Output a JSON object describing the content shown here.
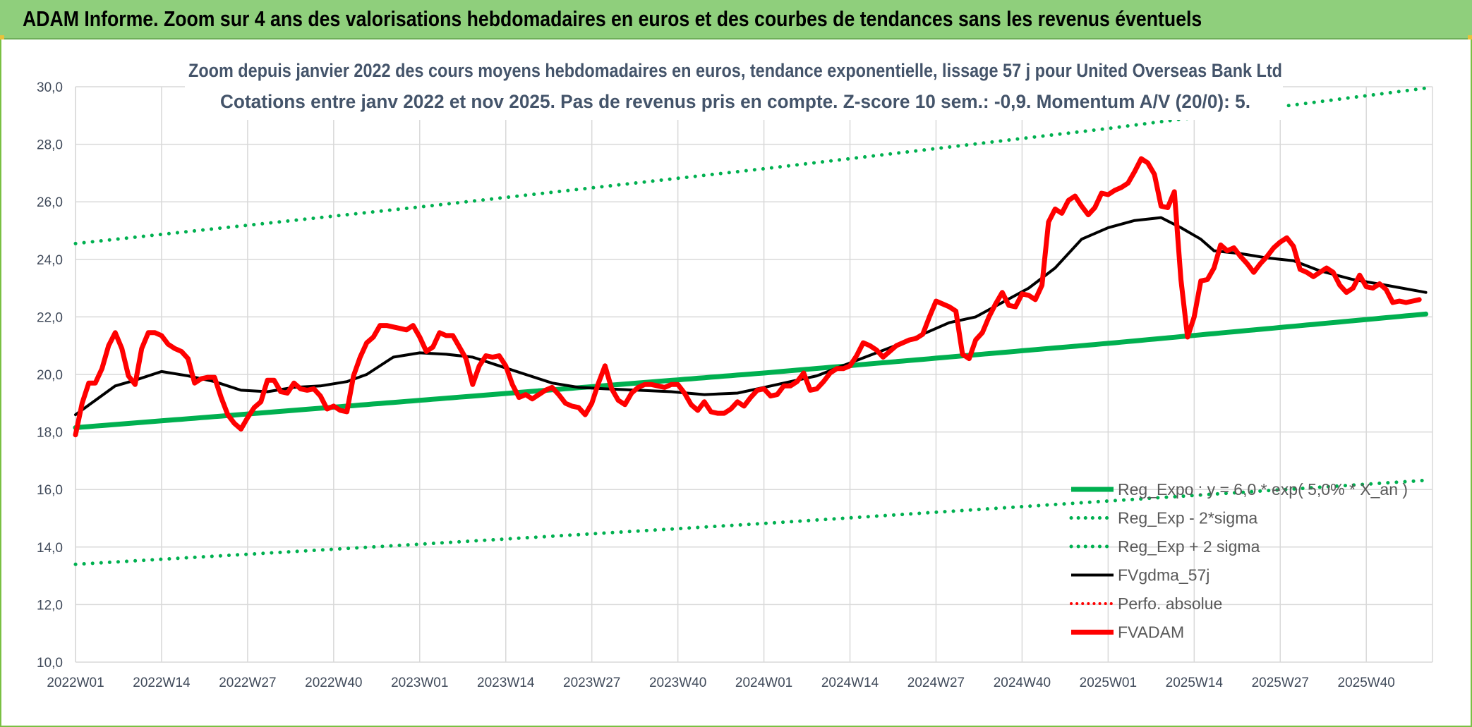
{
  "banner": {
    "title": "ADAM Informe. Zoom sur 4 ans des valorisations hebdomadaires en euros et des courbes de tendances sans les revenus éventuels"
  },
  "chart_data": {
    "type": "line",
    "title_line1": "Zoom depuis janvier 2022 des cours moyens hebdomadaires en euros, tendance exponentielle, lissage 57 j pour United Overseas Bank Ltd",
    "title_line2": "Cotations entre janv 2022 et nov 2025. Pas de revenus pris en compte. Z-score 10 sem.: -0,9. Momentum A/V (20/0): 5.",
    "xlabel": "",
    "ylabel": "",
    "ylim": [
      10,
      30
    ],
    "yticks": [
      "10,0",
      "12,0",
      "14,0",
      "16,0",
      "18,0",
      "20,0",
      "22,0",
      "24,0",
      "26,0",
      "28,0",
      "30,0"
    ],
    "x_tick_labels": [
      "2022W01",
      "2022W14",
      "2022W27",
      "2022W40",
      "2023W01",
      "2023W14",
      "2023W27",
      "2023W40",
      "2024W01",
      "2024W14",
      "2024W27",
      "2024W40",
      "2025W01",
      "2025W14",
      "2025W27",
      "2025W40"
    ],
    "x_tick_index": [
      0,
      13,
      26,
      39,
      52,
      65,
      78,
      91,
      104,
      117,
      130,
      143,
      156,
      169,
      182,
      195
    ],
    "n_weeks": 205,
    "grid": true,
    "legend_position": "bottom-right",
    "series": [
      {
        "name": "Reg_Expo : y = 6,0 * exp( 5,0% * X_an )",
        "style": "solid",
        "color": "#00b050",
        "width": 7,
        "knots": [
          [
            0,
            18.15
          ],
          [
            52,
            19.1
          ],
          [
            104,
            20.05
          ],
          [
            156,
            21.08
          ],
          [
            204,
            22.1
          ]
        ]
      },
      {
        "name": "Reg_Exp - 2*sigma",
        "style": "dotted",
        "color": "#00b050",
        "width": 5,
        "knots": [
          [
            0,
            13.4
          ],
          [
            52,
            14.1
          ],
          [
            104,
            14.82
          ],
          [
            156,
            15.6
          ],
          [
            204,
            16.32
          ]
        ]
      },
      {
        "name": "Reg_Exp + 2 sigma",
        "style": "dotted",
        "color": "#00b050",
        "width": 5,
        "knots": [
          [
            0,
            24.55
          ],
          [
            52,
            25.82
          ],
          [
            104,
            27.15
          ],
          [
            156,
            28.55
          ],
          [
            204,
            29.95
          ]
        ]
      },
      {
        "name": "FVgdma_57j",
        "style": "solid",
        "color": "#000000",
        "width": 4,
        "knots": [
          [
            0,
            18.6
          ],
          [
            3,
            19.1
          ],
          [
            6,
            19.6
          ],
          [
            9,
            19.8
          ],
          [
            13,
            20.1
          ],
          [
            17,
            19.95
          ],
          [
            21,
            19.75
          ],
          [
            25,
            19.45
          ],
          [
            29,
            19.4
          ],
          [
            33,
            19.55
          ],
          [
            37,
            19.6
          ],
          [
            41,
            19.75
          ],
          [
            44,
            20.0
          ],
          [
            48,
            20.6
          ],
          [
            52,
            20.75
          ],
          [
            56,
            20.7
          ],
          [
            60,
            20.6
          ],
          [
            64,
            20.3
          ],
          [
            68,
            20.0
          ],
          [
            72,
            19.7
          ],
          [
            76,
            19.55
          ],
          [
            80,
            19.5
          ],
          [
            85,
            19.45
          ],
          [
            90,
            19.4
          ],
          [
            95,
            19.3
          ],
          [
            100,
            19.35
          ],
          [
            104,
            19.55
          ],
          [
            108,
            19.75
          ],
          [
            112,
            19.95
          ],
          [
            117,
            20.4
          ],
          [
            121,
            20.75
          ],
          [
            125,
            21.1
          ],
          [
            129,
            21.5
          ],
          [
            132,
            21.8
          ],
          [
            136,
            22.0
          ],
          [
            140,
            22.5
          ],
          [
            144,
            23.0
          ],
          [
            148,
            23.7
          ],
          [
            152,
            24.7
          ],
          [
            156,
            25.1
          ],
          [
            160,
            25.35
          ],
          [
            164,
            25.45
          ],
          [
            167,
            25.1
          ],
          [
            170,
            24.7
          ],
          [
            172,
            24.3
          ],
          [
            176,
            24.2
          ],
          [
            180,
            24.05
          ],
          [
            184,
            23.95
          ],
          [
            188,
            23.6
          ],
          [
            193,
            23.3
          ],
          [
            198,
            23.1
          ],
          [
            204,
            22.85
          ]
        ]
      },
      {
        "name": "Perfo. absolue",
        "style": "dotted",
        "color": "#ff0000",
        "width": 4,
        "knots": []
      },
      {
        "name": "FVADAM",
        "style": "solid",
        "color": "#ff0000",
        "width": 7,
        "knots": [
          [
            0,
            17.9
          ],
          [
            1,
            19.0
          ],
          [
            2,
            19.7
          ],
          [
            3,
            19.7
          ],
          [
            4,
            20.2
          ],
          [
            5,
            21.0
          ],
          [
            6,
            21.45
          ],
          [
            7,
            20.9
          ],
          [
            8,
            19.95
          ],
          [
            9,
            19.65
          ],
          [
            10,
            20.9
          ],
          [
            11,
            21.45
          ],
          [
            12,
            21.45
          ],
          [
            13,
            21.35
          ],
          [
            14,
            21.05
          ],
          [
            15,
            20.9
          ],
          [
            16,
            20.8
          ],
          [
            17,
            20.55
          ],
          [
            18,
            19.7
          ],
          [
            19,
            19.85
          ],
          [
            20,
            19.9
          ],
          [
            21,
            19.9
          ],
          [
            22,
            19.2
          ],
          [
            23,
            18.6
          ],
          [
            24,
            18.3
          ],
          [
            25,
            18.1
          ],
          [
            26,
            18.5
          ],
          [
            27,
            18.85
          ],
          [
            28,
            19.05
          ],
          [
            29,
            19.8
          ],
          [
            30,
            19.8
          ],
          [
            31,
            19.4
          ],
          [
            32,
            19.35
          ],
          [
            33,
            19.7
          ],
          [
            34,
            19.5
          ],
          [
            35,
            19.45
          ],
          [
            36,
            19.5
          ],
          [
            37,
            19.25
          ],
          [
            38,
            18.8
          ],
          [
            39,
            18.9
          ],
          [
            40,
            18.75
          ],
          [
            41,
            18.7
          ],
          [
            42,
            19.95
          ],
          [
            43,
            20.6
          ],
          [
            44,
            21.1
          ],
          [
            45,
            21.3
          ],
          [
            46,
            21.7
          ],
          [
            47,
            21.7
          ],
          [
            48,
            21.65
          ],
          [
            49,
            21.6
          ],
          [
            50,
            21.55
          ],
          [
            51,
            21.7
          ],
          [
            52,
            21.3
          ],
          [
            53,
            20.8
          ],
          [
            54,
            20.95
          ],
          [
            55,
            21.45
          ],
          [
            56,
            21.35
          ],
          [
            57,
            21.35
          ],
          [
            58,
            20.95
          ],
          [
            59,
            20.55
          ],
          [
            60,
            19.65
          ],
          [
            61,
            20.3
          ],
          [
            62,
            20.65
          ],
          [
            63,
            20.6
          ],
          [
            64,
            20.65
          ],
          [
            65,
            20.3
          ],
          [
            66,
            19.65
          ],
          [
            67,
            19.2
          ],
          [
            68,
            19.3
          ],
          [
            69,
            19.15
          ],
          [
            70,
            19.3
          ],
          [
            71,
            19.45
          ],
          [
            72,
            19.55
          ],
          [
            73,
            19.3
          ],
          [
            74,
            19.0
          ],
          [
            75,
            18.9
          ],
          [
            76,
            18.85
          ],
          [
            77,
            18.6
          ],
          [
            78,
            19.0
          ],
          [
            79,
            19.7
          ],
          [
            80,
            20.3
          ],
          [
            81,
            19.5
          ],
          [
            82,
            19.1
          ],
          [
            83,
            18.95
          ],
          [
            84,
            19.35
          ],
          [
            85,
            19.55
          ],
          [
            86,
            19.65
          ],
          [
            87,
            19.65
          ],
          [
            88,
            19.6
          ],
          [
            89,
            19.55
          ],
          [
            90,
            19.65
          ],
          [
            91,
            19.65
          ],
          [
            92,
            19.35
          ],
          [
            93,
            18.95
          ],
          [
            94,
            18.75
          ],
          [
            95,
            19.05
          ],
          [
            96,
            18.7
          ],
          [
            97,
            18.65
          ],
          [
            98,
            18.65
          ],
          [
            99,
            18.8
          ],
          [
            100,
            19.05
          ],
          [
            101,
            18.9
          ],
          [
            102,
            19.2
          ],
          [
            103,
            19.45
          ],
          [
            104,
            19.5
          ],
          [
            105,
            19.25
          ],
          [
            106,
            19.3
          ],
          [
            107,
            19.6
          ],
          [
            108,
            19.6
          ],
          [
            109,
            19.75
          ],
          [
            110,
            20.05
          ],
          [
            111,
            19.45
          ],
          [
            112,
            19.5
          ],
          [
            113,
            19.75
          ],
          [
            114,
            20.05
          ],
          [
            115,
            20.2
          ],
          [
            116,
            20.2
          ],
          [
            117,
            20.3
          ],
          [
            118,
            20.65
          ],
          [
            119,
            21.1
          ],
          [
            120,
            21.0
          ],
          [
            121,
            20.85
          ],
          [
            122,
            20.6
          ],
          [
            123,
            20.8
          ],
          [
            124,
            21.0
          ],
          [
            125,
            21.1
          ],
          [
            126,
            21.2
          ],
          [
            127,
            21.25
          ],
          [
            128,
            21.4
          ],
          [
            129,
            22.0
          ],
          [
            130,
            22.55
          ],
          [
            131,
            22.45
          ],
          [
            132,
            22.35
          ],
          [
            133,
            22.2
          ],
          [
            134,
            20.7
          ],
          [
            135,
            20.55
          ],
          [
            136,
            21.2
          ],
          [
            137,
            21.45
          ],
          [
            138,
            22.0
          ],
          [
            139,
            22.45
          ],
          [
            140,
            22.85
          ],
          [
            141,
            22.4
          ],
          [
            142,
            22.35
          ],
          [
            143,
            22.8
          ],
          [
            144,
            22.75
          ],
          [
            145,
            22.6
          ],
          [
            146,
            23.1
          ],
          [
            147,
            25.3
          ],
          [
            148,
            25.75
          ],
          [
            149,
            25.6
          ],
          [
            150,
            26.05
          ],
          [
            151,
            26.2
          ],
          [
            152,
            25.85
          ],
          [
            153,
            25.55
          ],
          [
            154,
            25.8
          ],
          [
            155,
            26.3
          ],
          [
            156,
            26.25
          ],
          [
            157,
            26.4
          ],
          [
            158,
            26.5
          ],
          [
            159,
            26.65
          ],
          [
            160,
            27.05
          ],
          [
            161,
            27.5
          ],
          [
            162,
            27.35
          ],
          [
            163,
            26.95
          ],
          [
            164,
            25.85
          ],
          [
            165,
            25.8
          ],
          [
            166,
            26.35
          ],
          [
            167,
            23.3
          ],
          [
            168,
            21.3
          ],
          [
            169,
            22.0
          ],
          [
            170,
            23.25
          ],
          [
            171,
            23.3
          ],
          [
            172,
            23.7
          ],
          [
            173,
            24.5
          ],
          [
            174,
            24.3
          ],
          [
            175,
            24.4
          ],
          [
            176,
            24.1
          ],
          [
            177,
            23.85
          ],
          [
            178,
            23.55
          ],
          [
            179,
            23.85
          ],
          [
            180,
            24.1
          ],
          [
            181,
            24.4
          ],
          [
            182,
            24.6
          ],
          [
            183,
            24.75
          ],
          [
            184,
            24.45
          ],
          [
            185,
            23.65
          ],
          [
            186,
            23.55
          ],
          [
            187,
            23.4
          ],
          [
            188,
            23.55
          ],
          [
            189,
            23.7
          ],
          [
            190,
            23.55
          ],
          [
            191,
            23.1
          ],
          [
            192,
            22.85
          ],
          [
            193,
            23.0
          ],
          [
            194,
            23.45
          ],
          [
            195,
            23.05
          ],
          [
            196,
            23.0
          ],
          [
            197,
            23.15
          ],
          [
            198,
            22.95
          ],
          [
            199,
            22.5
          ],
          [
            200,
            22.55
          ],
          [
            201,
            22.5
          ],
          [
            202,
            22.55
          ],
          [
            203,
            22.6
          ]
        ]
      }
    ]
  }
}
